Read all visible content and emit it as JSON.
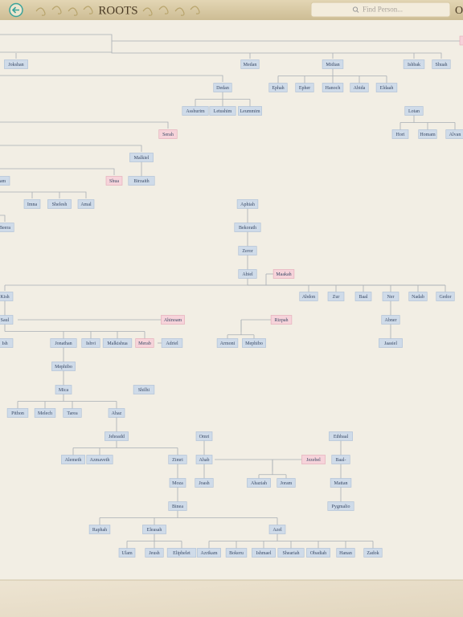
{
  "header": {
    "title": "ROOTS",
    "search_placeholder": "Find Person...",
    "edge_text": "O"
  },
  "nodes": [
    {
      "label": "Jokshan"
    },
    {
      "label": "Medan"
    },
    {
      "label": "Midian"
    },
    {
      "label": "Ishbak"
    },
    {
      "label": "Shuah"
    },
    {
      "label": "Dedan"
    },
    {
      "label": "Ephah"
    },
    {
      "label": "Epher"
    },
    {
      "label": "Hanoch"
    },
    {
      "label": "Abida"
    },
    {
      "label": "Eldaah"
    },
    {
      "label": "Asshurim"
    },
    {
      "label": "Letushim"
    },
    {
      "label": "Leummim"
    },
    {
      "label": "Lotan"
    },
    {
      "label": "Serah"
    },
    {
      "label": "Hori"
    },
    {
      "label": "Homam"
    },
    {
      "label": "Alvan"
    },
    {
      "label": "Malkiel"
    },
    {
      "label": "nam"
    },
    {
      "label": "Shua"
    },
    {
      "label": "Birzaith"
    },
    {
      "label": "Imna"
    },
    {
      "label": "Shelesh"
    },
    {
      "label": "Amal"
    },
    {
      "label": "Aphiah"
    },
    {
      "label": "Beera"
    },
    {
      "label": "Bekorath"
    },
    {
      "label": "Zeror"
    },
    {
      "label": "Abiel"
    },
    {
      "label": "Maakah"
    },
    {
      "label": "Kish"
    },
    {
      "label": "Abdon"
    },
    {
      "label": "Zur"
    },
    {
      "label": "Baal"
    },
    {
      "label": "Ner"
    },
    {
      "label": "Nadab"
    },
    {
      "label": "Gedor"
    },
    {
      "label": "Saul"
    },
    {
      "label": "Ahinoam"
    },
    {
      "label": "Rizpah"
    },
    {
      "label": "Abner"
    },
    {
      "label": "Ish"
    },
    {
      "label": "Jonathan"
    },
    {
      "label": "Ishvi"
    },
    {
      "label": "Malkishua"
    },
    {
      "label": "Merab"
    },
    {
      "label": "Adriel"
    },
    {
      "label": "Armoni"
    },
    {
      "label": "Mephibo"
    },
    {
      "label": "Jaasiel"
    },
    {
      "label": "Mephibo"
    },
    {
      "label": "Mica"
    },
    {
      "label": "Shilhi"
    },
    {
      "label": "Pithon"
    },
    {
      "label": "Melech"
    },
    {
      "label": "Tarea"
    },
    {
      "label": "Ahaz"
    },
    {
      "label": "Jehoadd"
    },
    {
      "label": "Omri"
    },
    {
      "label": "Ethbaal"
    },
    {
      "label": "Alemeth"
    },
    {
      "label": "Azmaveth"
    },
    {
      "label": "Zimri"
    },
    {
      "label": "Ahab"
    },
    {
      "label": "Jezebel"
    },
    {
      "label": "Baal-"
    },
    {
      "label": "Moza"
    },
    {
      "label": "Joash"
    },
    {
      "label": "Ahaziah"
    },
    {
      "label": "Joram"
    },
    {
      "label": "Mattan"
    },
    {
      "label": "Binea"
    },
    {
      "label": "Pygmalio"
    },
    {
      "label": "Raphah"
    },
    {
      "label": "Eleasah"
    },
    {
      "label": "Azel"
    },
    {
      "label": "Ulam"
    },
    {
      "label": "Jeush"
    },
    {
      "label": "Eliphelet"
    },
    {
      "label": "Azrikam"
    },
    {
      "label": "Bokeru"
    },
    {
      "label": "Ishmael"
    },
    {
      "label": "Sheariah"
    },
    {
      "label": "Obadiah"
    },
    {
      "label": "Hanan"
    },
    {
      "label": "Zadok"
    }
  ]
}
